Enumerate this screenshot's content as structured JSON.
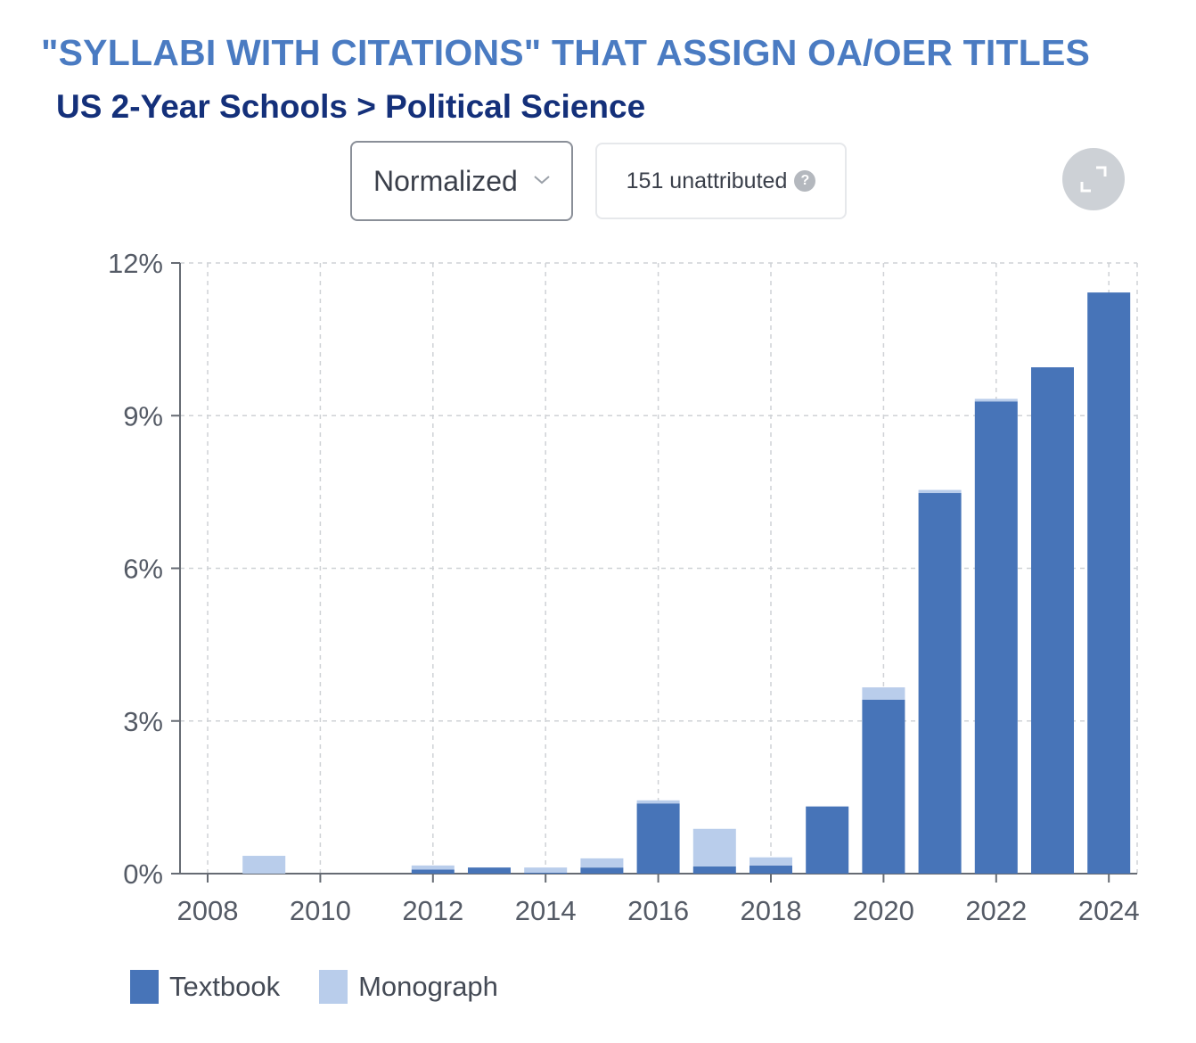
{
  "header": {
    "title": "\"SYLLABI WITH CITATIONS\" THAT ASSIGN OA/OER TITLES",
    "subtitle": "US 2-Year Schools > Political Science"
  },
  "controls": {
    "mode_label": "Normalized",
    "unattributed_label": "151 unattributed",
    "help_glyph": "?",
    "expand_icon": "expand-icon"
  },
  "colors": {
    "textbook": "#4774b8",
    "monograph": "#b9cdeb",
    "title": "#4a7bc2",
    "subtitle": "#14307a"
  },
  "chart_data": {
    "type": "bar",
    "stacked": true,
    "x": [
      2009,
      2012,
      2013,
      2014,
      2015,
      2016,
      2017,
      2018,
      2019,
      2020,
      2021,
      2022,
      2023,
      2024
    ],
    "series": [
      {
        "name": "Textbook",
        "values": [
          0,
          0.08,
          0.12,
          0.02,
          0.12,
          1.38,
          0.14,
          0.16,
          1.32,
          3.42,
          7.48,
          9.28,
          9.95,
          11.42
        ]
      },
      {
        "name": "Monograph",
        "values": [
          0.35,
          0.08,
          0.0,
          0.1,
          0.18,
          0.06,
          0.74,
          0.16,
          0.0,
          0.24,
          0.06,
          0.05,
          0.0,
          0.0
        ]
      }
    ],
    "x_ticks": [
      "2008",
      "2010",
      "2012",
      "2014",
      "2016",
      "2018",
      "2020",
      "2022",
      "2024"
    ],
    "y_ticks": [
      "0%",
      "3%",
      "6%",
      "9%",
      "12%"
    ],
    "xlim": [
      2008,
      2025
    ],
    "ylim": [
      0,
      12
    ],
    "grid": true,
    "legend_position": "bottom-left"
  }
}
